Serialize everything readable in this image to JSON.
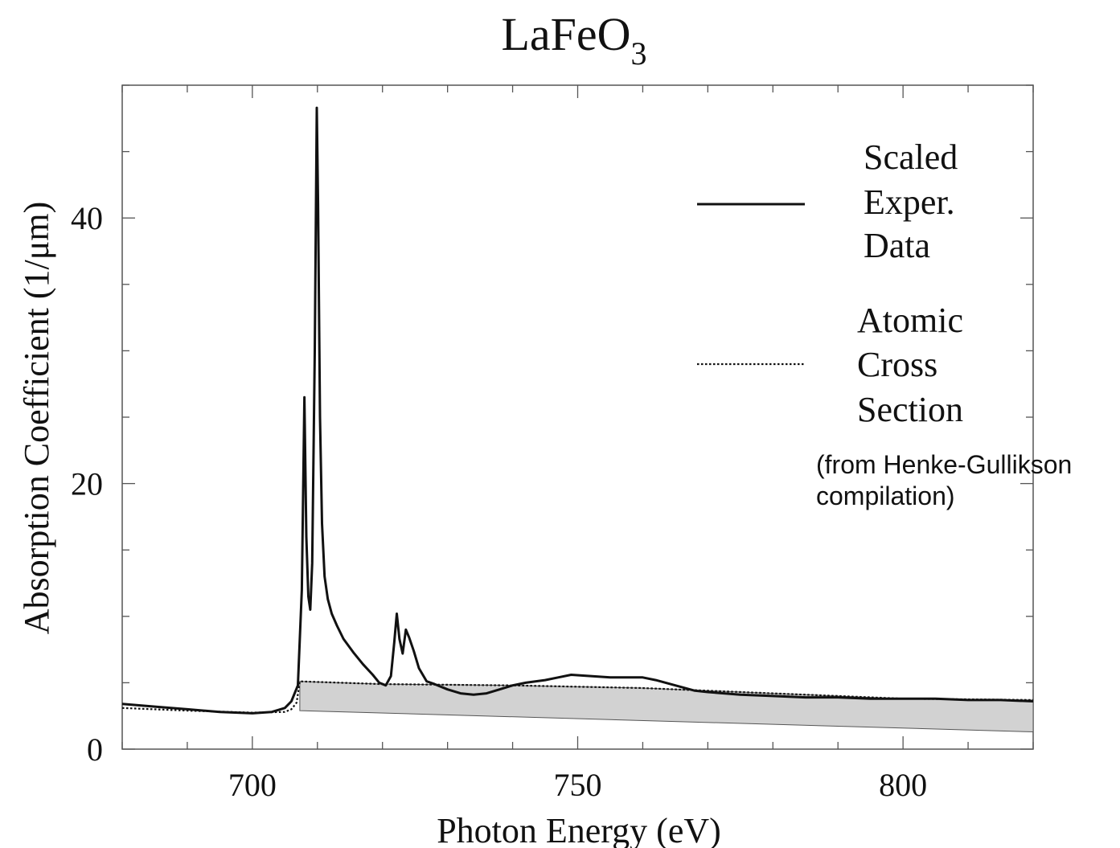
{
  "chart_data": {
    "type": "line",
    "title_main": "LaFeO",
    "title_sub": "3",
    "xlabel": "Photon Energy (eV)",
    "ylabel": "Absorption Coefficient (1/μm)",
    "xlim": [
      680,
      820
    ],
    "ylim": [
      0,
      50
    ],
    "xticks": [
      700,
      750,
      800
    ],
    "yticks": [
      0,
      20,
      40
    ],
    "grid": false,
    "legend_placement": "top-right",
    "legend": {
      "solid_lines": [
        "Scaled",
        "Exper.",
        "Data"
      ],
      "dotted_lines": [
        "Atomic",
        "Cross",
        "Section"
      ]
    },
    "annotation_lines": [
      "(from Henke-Gullikson",
      "compilation)"
    ],
    "colors": {
      "line": "#111111",
      "fill": "#d2d2d2"
    },
    "series": [
      {
        "style": "solid",
        "x": [
          680,
          685,
          690,
          695,
          700,
          703,
          705,
          706,
          707,
          707.6,
          708,
          708.3,
          708.6,
          708.9,
          709.2,
          709.6,
          709.9,
          710.1,
          710.4,
          710.7,
          711.1,
          711.6,
          712.2,
          713,
          714,
          715.5,
          717,
          718.5,
          719.5,
          720.5,
          721.3,
          721.8,
          722.2,
          722.6,
          723.1,
          723.6,
          724.1,
          724.8,
          725.6,
          726.8,
          728,
          730,
          732,
          734,
          736,
          738,
          740,
          742,
          745,
          747,
          749,
          752,
          755,
          758,
          760,
          762,
          765,
          768,
          770,
          775,
          780,
          785,
          790,
          795,
          800,
          805,
          810,
          815,
          820
        ],
        "y": [
          3.4,
          3.2,
          3.0,
          2.8,
          2.7,
          2.8,
          3.1,
          3.6,
          4.8,
          12,
          26.5,
          16,
          11.5,
          10.5,
          14,
          30,
          48.3,
          41,
          25,
          17,
          13,
          11.3,
          10.2,
          9.3,
          8.3,
          7.3,
          6.4,
          5.6,
          5.0,
          4.8,
          5.5,
          8,
          10.2,
          8.3,
          7.2,
          9,
          8.4,
          7.4,
          6.1,
          5.1,
          4.9,
          4.5,
          4.2,
          4.1,
          4.2,
          4.5,
          4.8,
          5.0,
          5.2,
          5.4,
          5.6,
          5.5,
          5.4,
          5.4,
          5.4,
          5.2,
          4.8,
          4.4,
          4.3,
          4.1,
          4.0,
          3.9,
          3.9,
          3.8,
          3.8,
          3.8,
          3.7,
          3.7,
          3.6
        ]
      },
      {
        "style": "dotted",
        "x": [
          680,
          690,
          700,
          705,
          706,
          706.8,
          707.3,
          720,
          740,
          760,
          780,
          800,
          820
        ],
        "y": [
          3.1,
          2.9,
          2.75,
          2.8,
          3.0,
          3.5,
          5.1,
          4.9,
          4.8,
          4.6,
          4.2,
          3.8,
          3.7
        ]
      }
    ],
    "shaded_region": {
      "upper_x": [
        707.3,
        720,
        740,
        760,
        780,
        800,
        820
      ],
      "upper_y": [
        5.1,
        4.9,
        4.8,
        4.6,
        4.2,
        3.8,
        3.7
      ],
      "lower_x": [
        820,
        707.3
      ],
      "lower_y": [
        1.3,
        2.9
      ]
    }
  }
}
